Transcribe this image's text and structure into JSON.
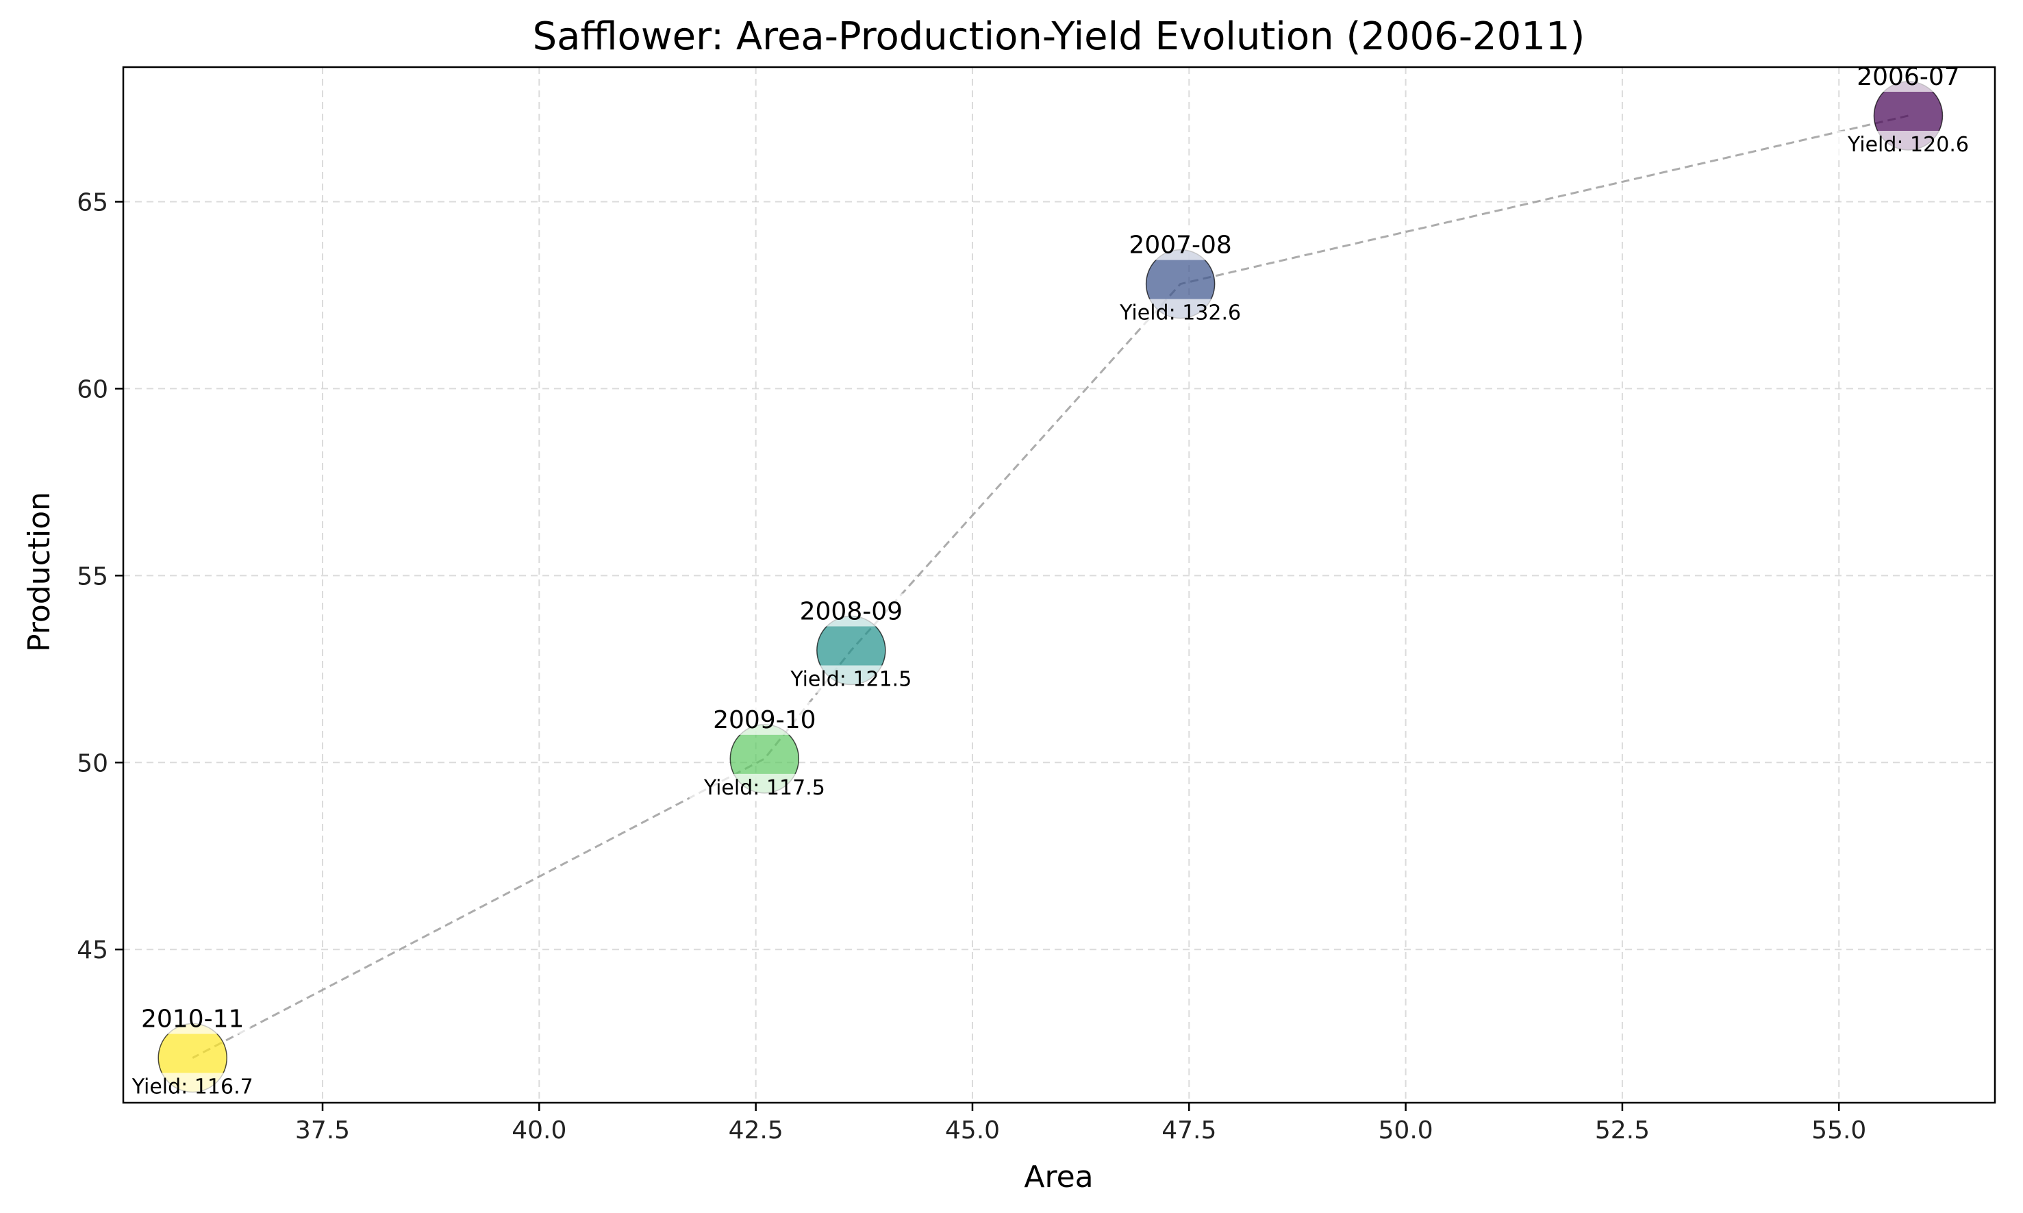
{
  "chart_data": {
    "type": "scatter",
    "title": "Safflower: Area-Production-Yield Evolution (2006-2011)",
    "xlabel": "Area",
    "ylabel": "Production",
    "xlim": [
      35.2,
      56.8
    ],
    "ylim": [
      40.9,
      68.6
    ],
    "xticks": [
      "37.5",
      "40.0",
      "42.5",
      "45.0",
      "47.5",
      "50.0",
      "52.5",
      "55.0"
    ],
    "yticks": [
      "45",
      "50",
      "55",
      "60",
      "65"
    ],
    "grid": true,
    "trend_line": "dashed",
    "points": [
      {
        "label": "2006-07",
        "area": 55.8,
        "production": 67.3,
        "yield": "Yield: 120.6",
        "color": "#440154"
      },
      {
        "label": "2007-08",
        "area": 47.4,
        "production": 62.8,
        "yield": "Yield: 132.6",
        "color": "#3b528b"
      },
      {
        "label": "2008-09",
        "area": 43.6,
        "production": 53.0,
        "yield": "Yield: 121.5",
        "color": "#21918c"
      },
      {
        "label": "2009-10",
        "area": 42.6,
        "production": 50.1,
        "yield": "Yield: 117.5",
        "color": "#5ec962"
      },
      {
        "label": "2010-11",
        "area": 36.0,
        "production": 42.1,
        "yield": "Yield: 116.7",
        "color": "#fde725"
      }
    ]
  }
}
